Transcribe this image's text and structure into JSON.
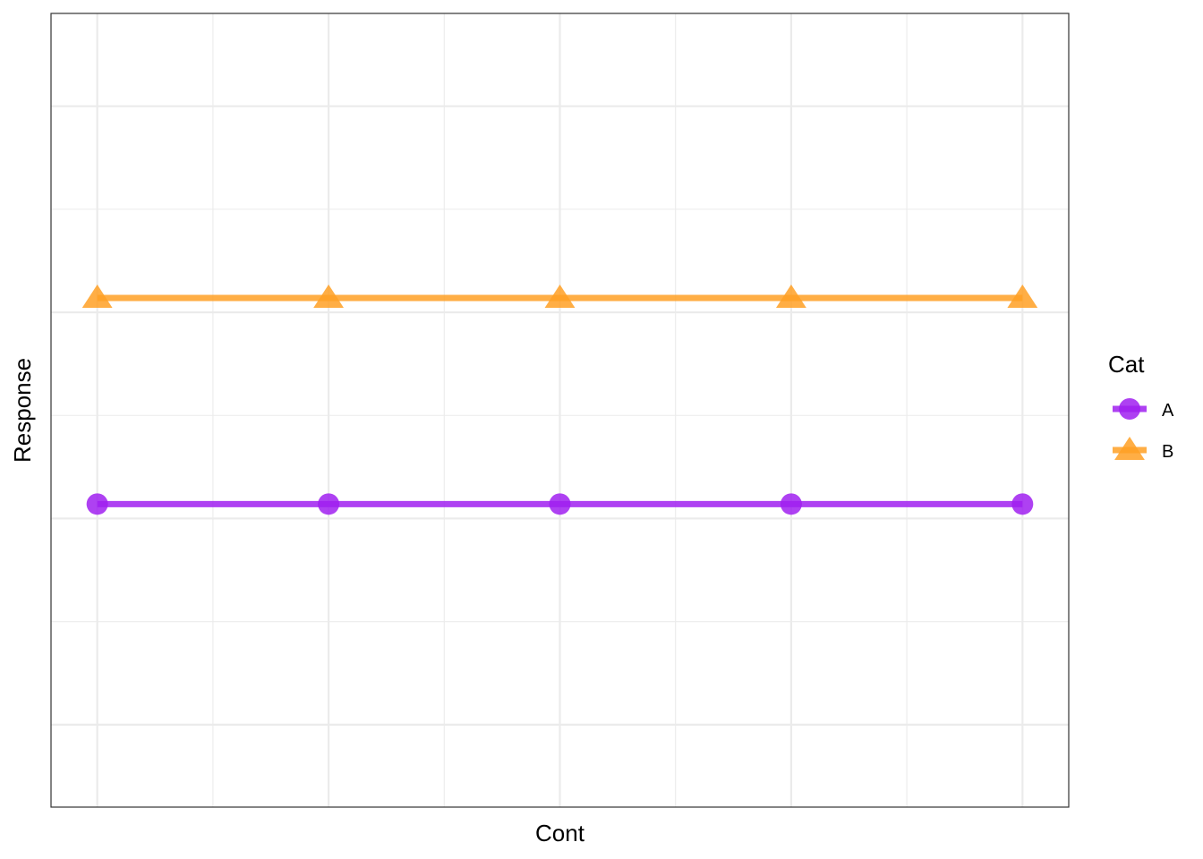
{
  "chart_data": {
    "type": "line",
    "xlabel": "Cont",
    "ylabel": "Response",
    "x": [
      1,
      2,
      3,
      4,
      5
    ],
    "xlim": [
      0.8,
      5.2
    ],
    "ylim": [
      -0.4,
      3.45
    ],
    "grid": true,
    "axis_tick_labels_shown": false,
    "legend": {
      "title": "Cat",
      "position": "right"
    },
    "series": [
      {
        "name": "A",
        "values": [
          1.07,
          1.07,
          1.07,
          1.07,
          1.07
        ],
        "color": "#A020F0",
        "marker": "circle"
      },
      {
        "name": "B",
        "values": [
          2.07,
          2.07,
          2.07,
          2.07,
          2.07
        ],
        "color": "#FFA024",
        "marker": "triangle"
      }
    ]
  }
}
